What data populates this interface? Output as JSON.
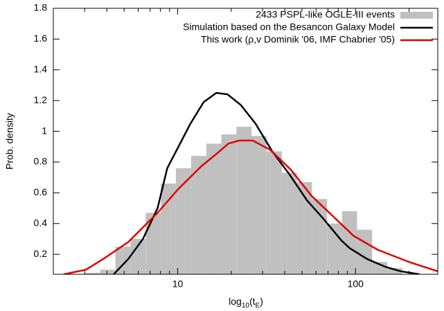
{
  "chart_data": {
    "type": "histogram",
    "xlabel": [
      "log",
      "10",
      "(t",
      "E",
      ")"
    ],
    "ylabel": "Prob. density",
    "xscale": "log",
    "xlim": [
      2,
      290
    ],
    "ylim": [
      0.07,
      1.8
    ],
    "xticks": [
      10,
      100
    ],
    "xminorticks": [
      3,
      4,
      5,
      6,
      7,
      8,
      9,
      20,
      30,
      40,
      50,
      60,
      70,
      80,
      90,
      200
    ],
    "yticks": [
      0.2,
      0.4,
      0.6,
      0.8,
      1,
      1.2,
      1.4,
      1.6,
      1.8
    ],
    "legend": "upper right",
    "series": [
      {
        "name": "2433 PSPL-like OGLE-III events",
        "type": "histogram",
        "color": "#c0c0c0",
        "bins": [
          3.02,
          3.67,
          4.47,
          5.43,
          6.61,
          8.04,
          9.77,
          11.9,
          14.5,
          17.6,
          21.4,
          26.0,
          31.6,
          38.5,
          46.8,
          56.9,
          69.2,
          84.1,
          102,
          124,
          151,
          184
        ],
        "values": [
          0.08,
          0.1,
          0.25,
          0.3,
          0.47,
          0.66,
          0.76,
          0.84,
          0.92,
          0.98,
          1.03,
          0.97,
          0.87,
          0.73,
          0.67,
          0.56,
          0.4,
          0.48,
          0.36,
          0.15,
          0.11
        ]
      },
      {
        "name": "Simulation based on the Besancon Galaxy Model",
        "type": "line",
        "color": "#000000",
        "x": [
          4.37,
          5.28,
          6.38,
          7.71,
          8.74,
          11.8,
          14.0,
          16.5,
          19.1,
          22.7,
          27.4,
          34.0,
          42.5,
          53.4,
          66.1,
          83.3,
          92.7,
          116,
          146,
          179,
          229
        ],
        "values": [
          0.07,
          0.17,
          0.3,
          0.5,
          0.76,
          1.05,
          1.19,
          1.25,
          1.24,
          1.17,
          1.05,
          0.87,
          0.72,
          0.55,
          0.43,
          0.29,
          0.24,
          0.17,
          0.12,
          0.09,
          0.07
        ]
      },
      {
        "name": "This work (ρ,v Dominik '06, IMF Chabrier '05)",
        "type": "line",
        "color": "#e00000",
        "x": [
          2.29,
          3.05,
          3.82,
          5.28,
          7.71,
          10,
          13.5,
          16.8,
          19.3,
          22.1,
          26.4,
          33.1,
          43.3,
          56.6,
          74.3,
          97.5,
          133,
          200,
          289
        ],
        "values": [
          0.07,
          0.1,
          0.17,
          0.28,
          0.47,
          0.62,
          0.77,
          0.86,
          0.92,
          0.94,
          0.94,
          0.88,
          0.75,
          0.58,
          0.45,
          0.32,
          0.23,
          0.15,
          0.09
        ]
      }
    ]
  }
}
